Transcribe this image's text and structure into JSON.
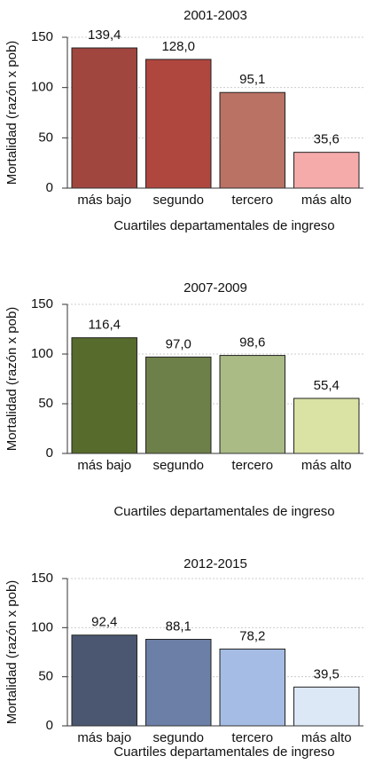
{
  "chart_data": [
    {
      "type": "bar",
      "title": "2001-2003",
      "y_label": "Mortalidad (razón x pob)",
      "x_label": "Cuartiles departamentales de ingreso",
      "categories": [
        "más bajo",
        "segundo",
        "tercero",
        "más alto"
      ],
      "values": [
        139.4,
        128.0,
        95.1,
        35.6
      ],
      "value_labels": [
        "139,4",
        "128,0",
        "95,1",
        "35,6"
      ],
      "colors": [
        "#a0463f",
        "#b0473f",
        "#ba7264",
        "#f4abaa"
      ],
      "ylim": [
        0,
        150
      ],
      "yticks": [
        0,
        50,
        100,
        150
      ],
      "grid": true
    },
    {
      "type": "bar",
      "title": "2007-2009",
      "y_label": "Mortalidad (razón x pob)",
      "x_label": "Cuartiles departamentales de ingreso",
      "categories": [
        "más bajo",
        "segundo",
        "tercero",
        "más alto"
      ],
      "values": [
        116.4,
        97.0,
        98.6,
        55.4
      ],
      "value_labels": [
        "116,4",
        "97,0",
        "98,6",
        "55,4"
      ],
      "colors": [
        "#576b2c",
        "#6e8049",
        "#aabb86",
        "#dae2a4"
      ],
      "ylim": [
        0,
        150
      ],
      "yticks": [
        0,
        50,
        100,
        150
      ],
      "grid": true
    },
    {
      "type": "bar",
      "title": "2012-2015",
      "y_label": "Mortalidad (razón x pob)",
      "x_label": "Cuartiles departamentales de ingreso",
      "categories": [
        "más bajo",
        "segundo",
        "tercero",
        "más alto"
      ],
      "values": [
        92.4,
        88.1,
        78.2,
        39.5
      ],
      "value_labels": [
        "92,4",
        "88,1",
        "78,2",
        "39,5"
      ],
      "colors": [
        "#4b5771",
        "#6c80a7",
        "#a5bde4",
        "#dde8f7"
      ],
      "ylim": [
        0,
        150
      ],
      "yticks": [
        0,
        50,
        100,
        150
      ],
      "grid": true
    }
  ]
}
